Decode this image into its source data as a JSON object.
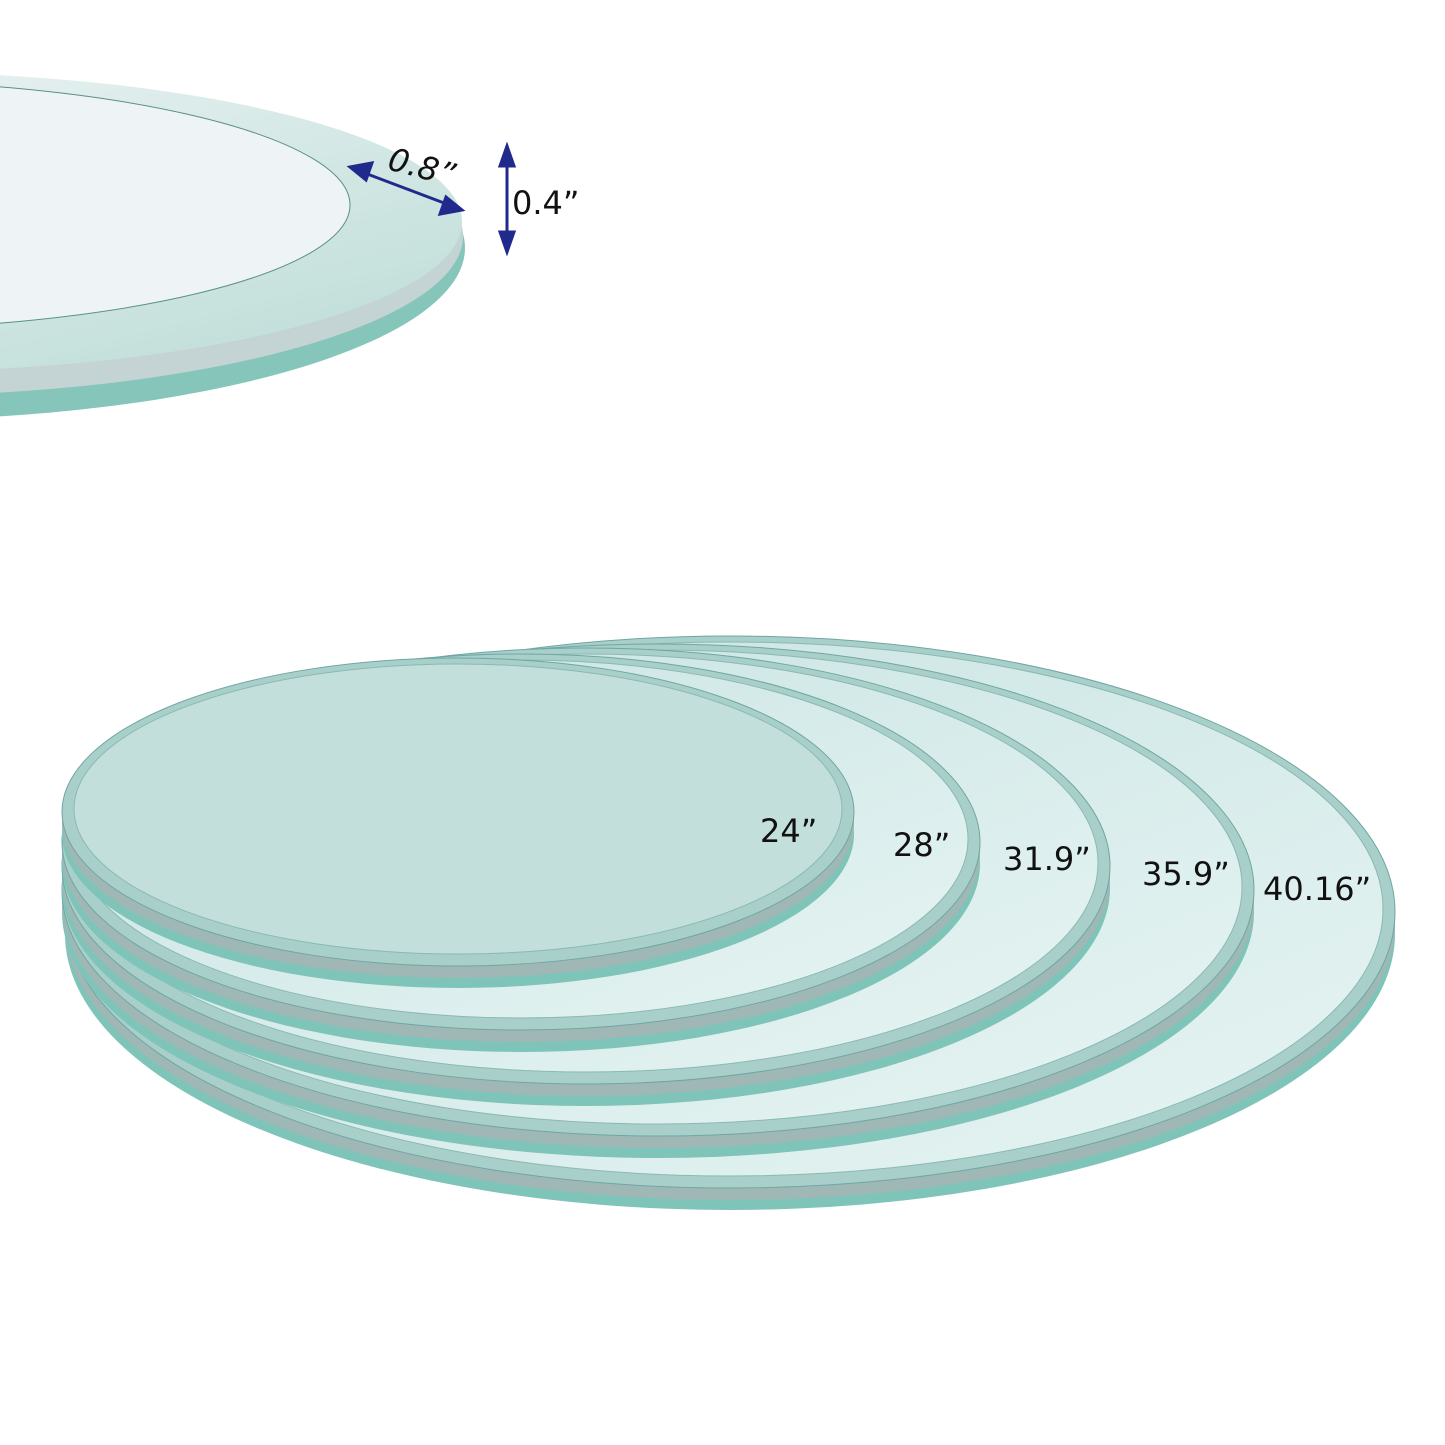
{
  "detail": {
    "bevel_width": "0.8”",
    "thickness": "0.4”",
    "arrow_color": "#1f2a8c"
  },
  "sizes": [
    {
      "label": "24”"
    },
    {
      "label": "28”"
    },
    {
      "label": "31.9”"
    },
    {
      "label": "35.9”"
    },
    {
      "label": "40.16”"
    }
  ],
  "colors": {
    "glass_edge": "#7fc4b8",
    "glass_top": "#c9e6e3",
    "glass_bevel": "#a9cfcb"
  }
}
